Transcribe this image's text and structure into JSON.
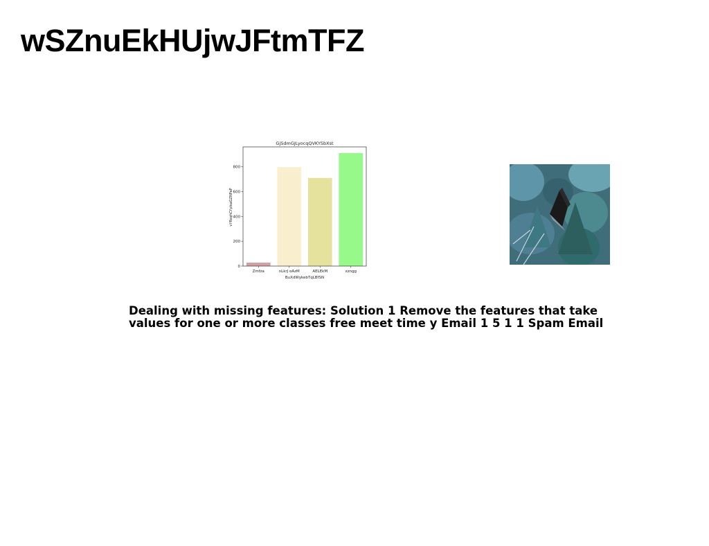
{
  "slide": {
    "title": "wSZnuEkHUjwJFtmTFZ",
    "body_text": "Dealing with missing features: Solution 1 Remove the features that take values for one or more classes free meet time y Email 1 5 1 1 Spam Email"
  },
  "photo": {
    "subject": "aerial view of a small dark cabin surrounded by evergreen trees",
    "icon": "forest-cabin-photo"
  },
  "chart_data": {
    "type": "bar",
    "title": "GjSdmGJLyocqQVKYSbXst",
    "xlabel": "BuXdWykebTqLBfSN",
    "ylabel": "vYRsqhCYpIsaGZNPaP",
    "categories": [
      "Zmfza",
      "nLkrJ oAzM",
      "AELEkM",
      "xzngg"
    ],
    "values": [
      28,
      797,
      710,
      910
    ],
    "colors": [
      "#d4a0a6",
      "#f9efce",
      "#e5e29e",
      "#96f98a"
    ],
    "ylim": [
      0,
      960
    ],
    "yticks": [
      0,
      200,
      400,
      600,
      800
    ],
    "grid": false,
    "legend": "none"
  }
}
